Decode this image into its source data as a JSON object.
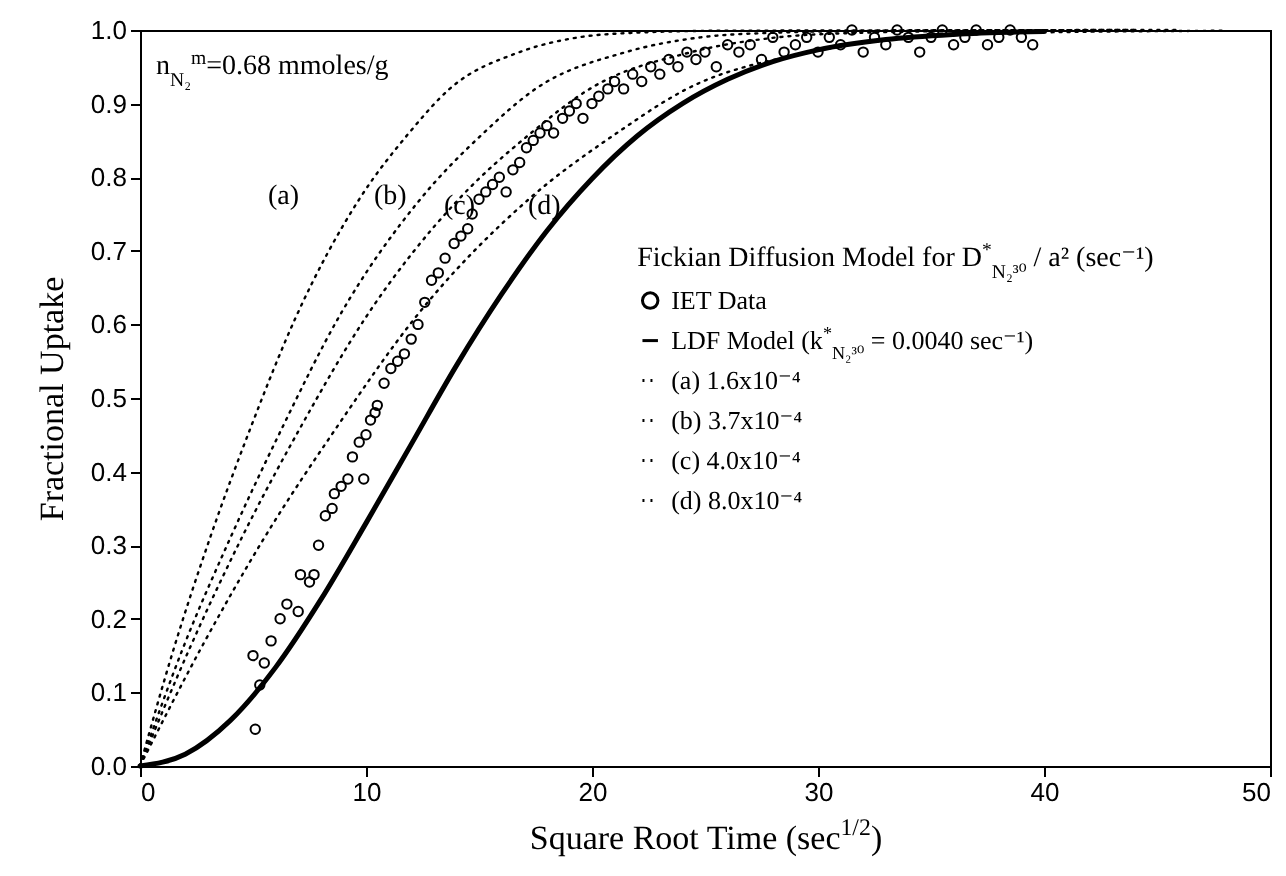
{
  "chart_data": {
    "type": "line",
    "xlabel": "Square Root Time (sec$^{1/2}$)",
    "ylabel": "Fractional Uptake",
    "xlim": [
      0,
      50
    ],
    "ylim": [
      0,
      1
    ],
    "xticks": [
      0,
      10,
      20,
      30,
      40,
      50
    ],
    "yticks": [
      {
        "value": 0,
        "label": "0.0"
      },
      {
        "value": 0.1,
        "label": "0.1"
      },
      {
        "value": 0.2,
        "label": "0.2"
      },
      {
        "value": 0.3,
        "label": "0.3"
      },
      {
        "value": 0.4,
        "label": "0.4"
      },
      {
        "value": 0.5,
        "label": "0.5"
      },
      {
        "value": 0.6,
        "label": "0.6"
      },
      {
        "value": 0.7,
        "label": "0.7"
      },
      {
        "value": 0.8,
        "label": "0.8"
      },
      {
        "value": 0.9,
        "label": "0.9"
      },
      {
        "value": 1,
        "label": "1.0"
      }
    ],
    "grid": false,
    "legend": "right",
    "annotations": [
      "n$_{N₂}$$^{m}$=0.68 mmoles/g",
      "Fickian Diffusion Model for D$^{*}$$_{N₂³⁰}$ / a² (sec⁻¹)",
      "(a)",
      "(b)",
      "(c)",
      "(d)"
    ],
    "series": [
      {
        "name": "IET Data",
        "type": "scatter",
        "marker": "circle",
        "color": "#000000",
        "x": [
          5.1,
          5.0,
          5.3,
          5.5,
          5.8,
          6.2,
          6.5,
          7.0,
          7.1,
          7.5,
          7.7,
          7.9,
          8.2,
          8.5,
          8.6,
          8.9,
          9.2,
          9.4,
          9.7,
          9.9,
          10.0,
          10.2,
          10.4,
          10.5,
          10.8,
          11.1,
          11.4,
          11.7,
          12.0,
          12.3,
          12.6,
          12.9,
          13.2,
          13.5,
          13.9,
          14.2,
          14.5,
          14.7,
          15.0,
          15.3,
          15.6,
          15.9,
          16.2,
          16.5,
          16.8,
          17.1,
          17.4,
          17.7,
          18.0,
          18.3,
          18.7,
          19.0,
          19.3,
          19.6,
          20.0,
          20.3,
          20.7,
          21.0,
          21.4,
          21.8,
          22.2,
          22.6,
          23.0,
          23.4,
          23.8,
          24.2,
          24.6,
          25.0,
          25.5,
          26.0,
          26.5,
          27.0,
          27.5,
          28.0,
          28.5,
          29.0,
          29.5,
          30.0,
          30.5,
          31.0,
          31.5,
          32.0,
          32.5,
          33.0,
          33.5,
          34.0,
          34.5,
          35.0,
          35.5,
          36.0,
          36.5,
          37.0,
          37.5,
          38.0,
          38.5,
          39.0,
          39.5
        ],
        "values": [
          0.05,
          0.15,
          0.11,
          0.14,
          0.17,
          0.2,
          0.22,
          0.21,
          0.26,
          0.25,
          0.26,
          0.3,
          0.34,
          0.35,
          0.37,
          0.38,
          0.39,
          0.42,
          0.44,
          0.39,
          0.45,
          0.47,
          0.48,
          0.49,
          0.52,
          0.54,
          0.55,
          0.56,
          0.58,
          0.6,
          0.63,
          0.66,
          0.67,
          0.69,
          0.71,
          0.72,
          0.73,
          0.75,
          0.77,
          0.78,
          0.79,
          0.8,
          0.78,
          0.81,
          0.82,
          0.84,
          0.85,
          0.86,
          0.87,
          0.86,
          0.88,
          0.89,
          0.9,
          0.88,
          0.9,
          0.91,
          0.92,
          0.93,
          0.92,
          0.94,
          0.93,
          0.95,
          0.94,
          0.96,
          0.95,
          0.97,
          0.96,
          0.97,
          0.95,
          0.98,
          0.97,
          0.98,
          0.96,
          0.99,
          0.97,
          0.98,
          0.99,
          0.97,
          0.99,
          0.98,
          1.0,
          0.97,
          0.99,
          0.98,
          1.0,
          0.99,
          0.97,
          0.99,
          1.0,
          0.98,
          0.99,
          1.0,
          0.98,
          0.99,
          1.0,
          0.99,
          0.98
        ]
      },
      {
        "name": "LDF Model (k$^{*}$$_{N₂³⁰}$ = 0.0040 sec⁻¹)",
        "line_style": "solid",
        "color": "#000000",
        "x": [
          0,
          2,
          4,
          6,
          8,
          10,
          12,
          14,
          16,
          18,
          20,
          22,
          24,
          26,
          28,
          30,
          33,
          36,
          40
        ],
        "values": [
          0,
          0.016,
          0.062,
          0.134,
          0.226,
          0.33,
          0.437,
          0.544,
          0.641,
          0.727,
          0.798,
          0.856,
          0.9,
          0.933,
          0.957,
          0.973,
          0.987,
          0.994,
          0.998
        ]
      },
      {
        "name": "(a) 1.6x10⁻⁴",
        "line_style": "dotted",
        "color": "#000000",
        "x": [
          0,
          1.5,
          3.1,
          4.9,
          6.9,
          9.7,
          11.9,
          13.7,
          16.8,
          19.4,
          21.7,
          25.7,
          46
        ],
        "values": [
          0,
          0.16,
          0.31,
          0.46,
          0.61,
          0.77,
          0.86,
          0.92,
          0.97,
          0.99,
          0.996,
          0.999,
          1.0
        ]
      },
      {
        "name": "(b) 3.7x10⁻⁴",
        "line_style": "dotted",
        "color": "#000000",
        "x": [
          0,
          1.9,
          4.0,
          6.3,
          8.8,
          12.4,
          15.2,
          17.5,
          21.5,
          24.8,
          27.8,
          32.9,
          44
        ],
        "values": [
          0,
          0.16,
          0.31,
          0.46,
          0.61,
          0.77,
          0.86,
          0.92,
          0.97,
          0.99,
          0.996,
          0.999,
          1.0
        ]
      },
      {
        "name": "(c) 4.0x10⁻⁴",
        "line_style": "dotted",
        "color": "#000000",
        "x": [
          0,
          2.2,
          4.5,
          7.1,
          10.0,
          14.1,
          17.3,
          19.9,
          24.4,
          28.2,
          31.6,
          37.4,
          42
        ],
        "values": [
          0,
          0.16,
          0.31,
          0.46,
          0.61,
          0.77,
          0.86,
          0.92,
          0.97,
          0.99,
          0.996,
          0.999,
          1.0
        ]
      },
      {
        "name": "(d) 8.0x10⁻⁴",
        "line_style": "dotted",
        "color": "#000000",
        "x": [
          0,
          2.7,
          5.5,
          8.7,
          12.2,
          17.2,
          21.1,
          24.2,
          29.7,
          34.3,
          38.4,
          48
        ],
        "values": [
          0,
          0.16,
          0.31,
          0.46,
          0.61,
          0.77,
          0.86,
          0.92,
          0.97,
          0.99,
          0.996,
          0.999
        ]
      }
    ]
  }
}
